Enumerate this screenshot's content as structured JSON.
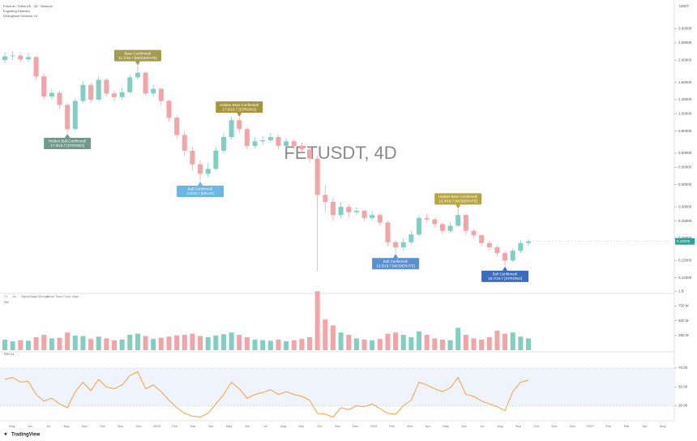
{
  "chart_data": {
    "type": "candlestick",
    "header_lines": [
      "Fetch.ai / TetherUS · 4D · Binance",
      "Engulfing Detector",
      "Divergence Detector v4"
    ],
    "watermark": "FETUSDT, 4D",
    "currency": "USDT",
    "brand": "TradingView",
    "log_scale": true,
    "grid": false,
    "color_up": "#7fcfc3",
    "color_down": "#f4a3a6",
    "open": [
      2.0,
      2.1,
      2.12,
      2.02,
      2.08,
      1.62,
      1.25,
      1.31,
      1.12,
      0.82,
      1.18,
      1.45,
      1.2,
      1.55,
      1.3,
      1.24,
      1.32,
      1.6,
      1.7,
      1.3,
      1.38,
      1.18,
      0.95,
      0.76,
      0.62,
      0.52,
      0.46,
      0.49,
      0.62,
      0.74,
      0.92,
      0.82,
      0.66,
      0.7,
      0.71,
      0.74,
      0.66,
      0.7,
      0.66,
      0.63,
      0.56,
      0.35,
      0.32,
      0.27,
      0.3,
      0.28,
      0.285,
      0.26,
      0.27,
      0.245,
      0.19,
      0.178,
      0.19,
      0.21,
      0.26,
      0.255,
      0.24,
      0.22,
      0.235,
      0.27,
      0.22,
      0.208,
      0.188,
      0.178,
      0.165,
      0.15,
      0.17,
      0.188
    ],
    "high": [
      2.22,
      2.25,
      2.2,
      2.18,
      2.12,
      1.68,
      1.38,
      1.35,
      1.15,
      1.22,
      1.52,
      1.5,
      1.62,
      1.58,
      1.36,
      1.4,
      1.66,
      1.85,
      1.72,
      1.45,
      1.4,
      1.2,
      0.98,
      0.8,
      0.65,
      0.55,
      0.53,
      0.65,
      0.78,
      0.96,
      0.95,
      0.84,
      0.74,
      0.75,
      0.78,
      0.76,
      0.73,
      0.72,
      0.69,
      0.65,
      0.58,
      0.4,
      0.34,
      0.32,
      0.31,
      0.3,
      0.29,
      0.285,
      0.275,
      0.25,
      0.195,
      0.2,
      0.22,
      0.27,
      0.275,
      0.26,
      0.245,
      0.245,
      0.29,
      0.275,
      0.225,
      0.21,
      0.192,
      0.182,
      0.17,
      0.175,
      0.195,
      0.198
    ],
    "low": [
      1.92,
      2.0,
      1.95,
      1.96,
      1.55,
      1.2,
      1.2,
      1.06,
      0.78,
      0.8,
      1.15,
      1.15,
      1.18,
      1.26,
      1.18,
      1.2,
      1.3,
      1.56,
      1.26,
      1.25,
      1.12,
      0.9,
      0.72,
      0.58,
      0.48,
      0.42,
      0.44,
      0.48,
      0.6,
      0.72,
      0.78,
      0.63,
      0.64,
      0.67,
      0.69,
      0.63,
      0.64,
      0.63,
      0.6,
      0.53,
      0.13,
      0.28,
      0.25,
      0.26,
      0.26,
      0.27,
      0.25,
      0.25,
      0.235,
      0.18,
      0.165,
      0.17,
      0.185,
      0.205,
      0.245,
      0.23,
      0.21,
      0.215,
      0.23,
      0.21,
      0.2,
      0.18,
      0.17,
      0.158,
      0.14,
      0.147,
      0.165,
      0.182
    ],
    "close": [
      2.1,
      2.12,
      2.02,
      2.08,
      1.62,
      1.25,
      1.31,
      1.12,
      0.82,
      1.18,
      1.45,
      1.2,
      1.55,
      1.3,
      1.24,
      1.32,
      1.6,
      1.7,
      1.3,
      1.38,
      1.18,
      0.95,
      0.76,
      0.62,
      0.52,
      0.46,
      0.49,
      0.62,
      0.74,
      0.92,
      0.82,
      0.66,
      0.7,
      0.71,
      0.74,
      0.66,
      0.7,
      0.66,
      0.63,
      0.56,
      0.35,
      0.32,
      0.27,
      0.3,
      0.28,
      0.285,
      0.26,
      0.27,
      0.245,
      0.19,
      0.178,
      0.19,
      0.21,
      0.26,
      0.255,
      0.24,
      0.22,
      0.235,
      0.27,
      0.22,
      0.208,
      0.188,
      0.178,
      0.165,
      0.15,
      0.17,
      0.188,
      0.192
    ],
    "last_label": "0.19200",
    "ylim": [
      0.1,
      4
    ],
    "yticks": [
      {
        "value": 3,
        "label": "3.00000"
      },
      {
        "value": 2.5,
        "label": "2.50000"
      },
      {
        "value": 2,
        "label": "2.00000"
      },
      {
        "value": 1.5,
        "label": "1.50000"
      },
      {
        "value": 1.2,
        "label": "1.20000"
      },
      {
        "value": 1,
        "label": "1.00000"
      },
      {
        "value": 0.8,
        "label": "0.80000"
      },
      {
        "value": 0.6,
        "label": "0.60000"
      },
      {
        "value": 0.5,
        "label": "0.50000"
      },
      {
        "value": 0.4,
        "label": "0.40000"
      },
      {
        "value": 0.3,
        "label": "0.30000"
      },
      {
        "value": 0.25,
        "label": "0.25000"
      },
      {
        "value": 0.2,
        "label": "0.20000"
      },
      {
        "value": 0.15,
        "label": "0.15000"
      },
      {
        "value": 0.12,
        "label": "0.12000"
      }
    ],
    "annotations": [
      {
        "title": "Bear Confirmed!",
        "detail": "11.7/19.7 [MODERATE]",
        "color": "#a39c4e"
      },
      {
        "title": "Hidden Bull Confirmed!",
        "detail": "17.3/19.7 [STRONG]",
        "color": "#6d9a8a"
      },
      {
        "title": "Hidden Bear Confirmed!",
        "detail": "17.5/19.7 [STRONG]",
        "color": "#a8943a"
      },
      {
        "title": "Bull Confirmed!",
        "detail": "4.8/19.7 [WEAK]",
        "color": "#6cb6e6"
      },
      {
        "title": "Hidden Bear Confirmed!",
        "detail": "13.4/19.7 [MODERATE]",
        "color": "#b7a342"
      },
      {
        "title": "Bull Confirmed!",
        "detail": "13.5/19.7 [MODERATE]",
        "color": "#5a8fd0"
      },
      {
        "title": "Bull Confirmed!",
        "detail": "18.7/19.7 [STRONG]",
        "color": "#3a6dbf"
      }
    ],
    "indicator_tabs": [
      "T1",
      "On",
      "Signal",
      "Stage",
      "Strength",
      "Score",
      "Trend",
      "Fund",
      "Align"
    ],
    "volume": {
      "label": "Vol",
      "ylim": [
        0,
        1100
      ],
      "yticks": [
        {
          "value": 250,
          "label": "250 M"
        },
        {
          "value": 500,
          "label": "500 M"
        },
        {
          "value": 750,
          "label": "750 M"
        },
        {
          "value": 1000,
          "label": "1 B"
        }
      ],
      "values": [
        180,
        150,
        170,
        160,
        220,
        260,
        200,
        210,
        300,
        250,
        240,
        190,
        230,
        200,
        170,
        180,
        260,
        280,
        240,
        190,
        210,
        230,
        250,
        260,
        280,
        240,
        220,
        250,
        270,
        300,
        260,
        220,
        180,
        170,
        160,
        180,
        150,
        170,
        190,
        220,
        1000,
        520,
        420,
        300,
        260,
        200,
        180,
        170,
        190,
        280,
        300,
        260,
        220,
        320,
        260,
        200,
        180,
        170,
        380,
        260,
        200,
        180,
        220,
        330,
        280,
        300,
        230,
        200
      ]
    },
    "rsi": {
      "label": "RSI 14",
      "color": "#f7a13a",
      "ylim": [
        15,
        82
      ],
      "band": [
        30,
        70
      ],
      "yticks": [
        {
          "value": 30,
          "label": "30.00"
        },
        {
          "value": 50,
          "label": "50.00"
        },
        {
          "value": 70,
          "label": "70.00"
        }
      ],
      "values": [
        58,
        60,
        55,
        56,
        42,
        35,
        38,
        32,
        28,
        45,
        55,
        46,
        58,
        50,
        48,
        52,
        62,
        66,
        48,
        52,
        45,
        36,
        28,
        22,
        19,
        18,
        22,
        32,
        42,
        55,
        48,
        38,
        42,
        44,
        47,
        42,
        45,
        42,
        40,
        36,
        22,
        21,
        18,
        28,
        26,
        30,
        29,
        32,
        27,
        22,
        21,
        30,
        36,
        55,
        52,
        48,
        45,
        49,
        60,
        42,
        40,
        35,
        32,
        29,
        25,
        45,
        55,
        57
      ]
    },
    "x_labels": [
      "May",
      "Jun",
      "Jul",
      "Aug",
      "Sep",
      "Oct",
      "Nov",
      "Dec",
      "2025",
      "Feb",
      "Mar",
      "Apr",
      "May",
      "Jun",
      "Jul",
      "Aug",
      "Sep",
      "Oct",
      "Nov",
      "Dec",
      "2026",
      "Feb",
      "Mar",
      "Apr",
      "May",
      "Jun",
      "Jul",
      "Aug",
      "Sep",
      "Oct",
      "Nov",
      "Dec",
      "2027",
      "Feb",
      "Mar",
      "Apr",
      "May"
    ]
  }
}
